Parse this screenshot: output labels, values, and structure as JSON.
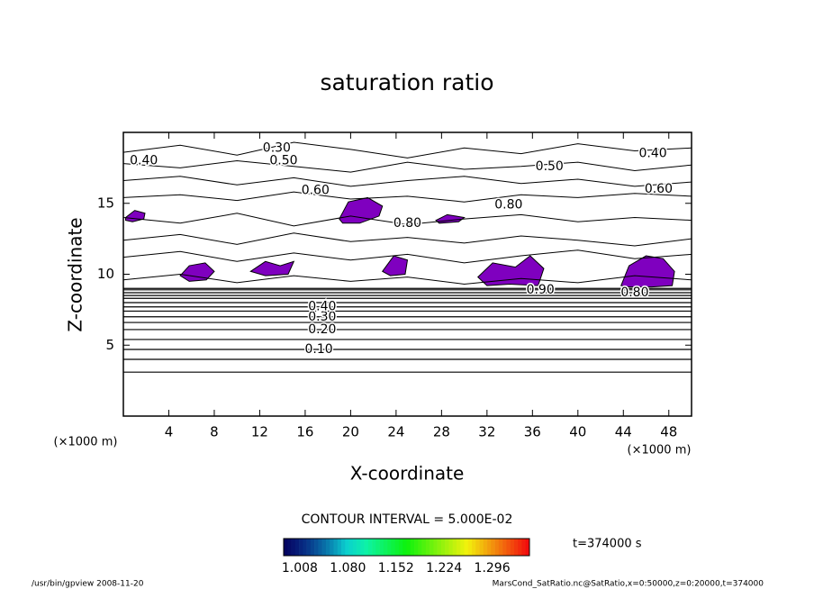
{
  "chart_data": {
    "type": "contour",
    "title": "saturation ratio",
    "x_label": "X-coordinate",
    "y_label": "Z-coordinate",
    "x_unit": "(×1000 m)",
    "y_unit": "(×1000 m)",
    "xlim": [
      0,
      50
    ],
    "ylim": [
      0,
      20
    ],
    "xticks": [
      4,
      8,
      12,
      16,
      20,
      24,
      28,
      32,
      36,
      40,
      44,
      48
    ],
    "yticks": [
      5,
      10,
      15
    ],
    "contour_interval": "CONTOUR INTERVAL = 5.000E-02",
    "time_label": "t=374000 s",
    "flat_contour_z": [
      3.1,
      4.0,
      4.7,
      5.4,
      6.1,
      6.6,
      7.0,
      7.4,
      7.7,
      8.0,
      8.3,
      8.5,
      8.7,
      8.9,
      9.0
    ],
    "contour_paths": [
      {
        "x": [
          0,
          5,
          10,
          15,
          20,
          25,
          30,
          35,
          40,
          45,
          50
        ],
        "z": [
          18.6,
          19.1,
          18.4,
          19.3,
          18.8,
          18.2,
          18.9,
          18.5,
          19.2,
          18.7,
          18.9
        ]
      },
      {
        "x": [
          0,
          5,
          10,
          15,
          20,
          25,
          30,
          35,
          40,
          45,
          50
        ],
        "z": [
          17.8,
          17.5,
          18.0,
          17.6,
          17.2,
          17.9,
          17.4,
          17.6,
          17.9,
          17.3,
          17.7
        ]
      },
      {
        "x": [
          0,
          5,
          10,
          15,
          20,
          25,
          30,
          35,
          40,
          45,
          50
        ],
        "z": [
          16.6,
          16.9,
          16.3,
          16.8,
          16.2,
          16.6,
          16.9,
          16.4,
          16.7,
          16.2,
          16.5
        ]
      },
      {
        "x": [
          0,
          5,
          10,
          15,
          20,
          25,
          30,
          35,
          40,
          45,
          50
        ],
        "z": [
          15.4,
          15.6,
          15.2,
          15.8,
          15.3,
          15.5,
          15.1,
          15.6,
          15.4,
          15.7,
          15.5
        ]
      },
      {
        "x": [
          0,
          5,
          10,
          15,
          20,
          25,
          30,
          35,
          40,
          45,
          50
        ],
        "z": [
          14.0,
          13.6,
          14.3,
          13.4,
          14.1,
          13.5,
          13.9,
          14.2,
          13.7,
          14.0,
          13.8
        ]
      },
      {
        "x": [
          0,
          5,
          10,
          15,
          20,
          25,
          30,
          35,
          40,
          45,
          50
        ],
        "z": [
          12.4,
          12.8,
          12.1,
          12.9,
          12.3,
          12.6,
          12.2,
          12.7,
          12.4,
          12.0,
          12.5
        ]
      },
      {
        "x": [
          0,
          5,
          10,
          15,
          20,
          25,
          30,
          35,
          40,
          45,
          50
        ],
        "z": [
          11.2,
          11.6,
          10.9,
          11.5,
          11.0,
          11.4,
          10.8,
          11.3,
          11.7,
          11.1,
          11.4
        ]
      },
      {
        "x": [
          0,
          5,
          10,
          15,
          20,
          25,
          30,
          35,
          40,
          45,
          50
        ],
        "z": [
          9.6,
          10.0,
          9.4,
          9.9,
          9.5,
          9.8,
          9.3,
          9.7,
          9.4,
          9.9,
          9.6
        ]
      }
    ],
    "contour_labels": [
      {
        "value": {
          "value": 0.1,
          "label": "0.10"
        },
        "x": 17.2,
        "z": 4.7
      },
      {
        "value": {
          "value": 0.2,
          "label": "0.20"
        },
        "x": 17.5,
        "z": 6.1
      },
      {
        "value": {
          "value": 0.3,
          "label": "0.30"
        },
        "x": 17.5,
        "z": 7.0
      },
      {
        "value": {
          "value": 0.4,
          "label": "0.40"
        },
        "x": 17.5,
        "z": 7.7
      },
      {
        "value": {
          "value": 0.4,
          "label": "0.40"
        },
        "x": 1.8,
        "z": 18.0
      },
      {
        "value": {
          "value": 0.3,
          "label": "0.30"
        },
        "x": 13.5,
        "z": 18.9
      },
      {
        "value": {
          "value": 0.5,
          "label": "0.50"
        },
        "x": 14.1,
        "z": 18.0
      },
      {
        "value": {
          "value": 0.5,
          "label": "0.50"
        },
        "x": 37.5,
        "z": 17.6
      },
      {
        "value": {
          "value": 0.4,
          "label": "0.40"
        },
        "x": 46.6,
        "z": 18.5
      },
      {
        "value": {
          "value": 0.6,
          "label": "0.60"
        },
        "x": 47.1,
        "z": 16.0
      },
      {
        "value": {
          "value": 0.6,
          "label": "0.60"
        },
        "x": 16.9,
        "z": 15.9
      },
      {
        "value": {
          "value": 0.8,
          "label": "0.80"
        },
        "x": 25.0,
        "z": 13.6
      },
      {
        "value": {
          "value": 0.8,
          "label": "0.80"
        },
        "x": 33.9,
        "z": 14.9
      },
      {
        "value": {
          "value": 0.9,
          "label": "0.90"
        },
        "x": 36.7,
        "z": 8.9
      },
      {
        "value": {
          "value": 0.8,
          "label": "0.80"
        },
        "x": 45.0,
        "z": 8.7
      }
    ],
    "shade_color": "#7f00bf",
    "shaded_regions": [
      {
        "x": [
          43.8,
          44.5,
          46.0,
          47.5,
          48.5,
          48.3,
          46.5,
          44.5
        ],
        "z": [
          9.2,
          10.6,
          11.3,
          11.1,
          10.2,
          9.2,
          9.1,
          9.1
        ]
      },
      {
        "x": [
          31.2,
          32.5,
          34.5,
          35.8,
          37.0,
          36.5,
          34.0,
          32.0
        ],
        "z": [
          9.8,
          10.8,
          10.5,
          11.3,
          10.4,
          9.2,
          9.3,
          9.2
        ]
      },
      {
        "x": [
          19.0,
          19.8,
          21.5,
          22.8,
          22.5,
          20.8,
          19.3
        ],
        "z": [
          13.9,
          15.1,
          15.4,
          14.8,
          14.1,
          13.6,
          13.6
        ]
      },
      {
        "x": [
          0.2,
          1.0,
          1.9,
          1.8,
          0.8,
          0.2
        ],
        "z": [
          14.0,
          14.5,
          14.3,
          13.9,
          13.7,
          13.8
        ]
      },
      {
        "x": [
          5.0,
          5.8,
          7.2,
          8.0,
          7.3,
          5.8
        ],
        "z": [
          9.9,
          10.6,
          10.8,
          10.2,
          9.6,
          9.5
        ]
      },
      {
        "x": [
          11.2,
          12.5,
          13.8,
          15.0,
          14.5,
          12.5
        ],
        "z": [
          10.2,
          10.9,
          10.6,
          10.9,
          10.0,
          9.9
        ]
      },
      {
        "x": [
          22.8,
          23.8,
          25.0,
          24.8,
          23.5
        ],
        "z": [
          10.2,
          11.3,
          11.0,
          10.0,
          9.9
        ]
      },
      {
        "x": [
          27.5,
          28.5,
          30.0,
          29.5,
          27.8
        ],
        "z": [
          13.8,
          14.2,
          14.0,
          13.7,
          13.6
        ]
      }
    ],
    "colorbar": {
      "clim": [
        1.0,
        1.368
      ],
      "ticks": [
        {
          "value": 1.008,
          "label": "1.008"
        },
        {
          "value": 1.08,
          "label": "1.080"
        },
        {
          "value": 1.152,
          "label": "1.152"
        },
        {
          "value": 1.224,
          "label": "1.224"
        },
        {
          "value": 1.296,
          "label": "1.296"
        }
      ]
    }
  },
  "footer": {
    "left": "/usr/bin/gpview  2008-11-20",
    "right": "MarsCond_SatRatio.nc@SatRatio,x=0:50000,z=0:20000,t=374000"
  }
}
